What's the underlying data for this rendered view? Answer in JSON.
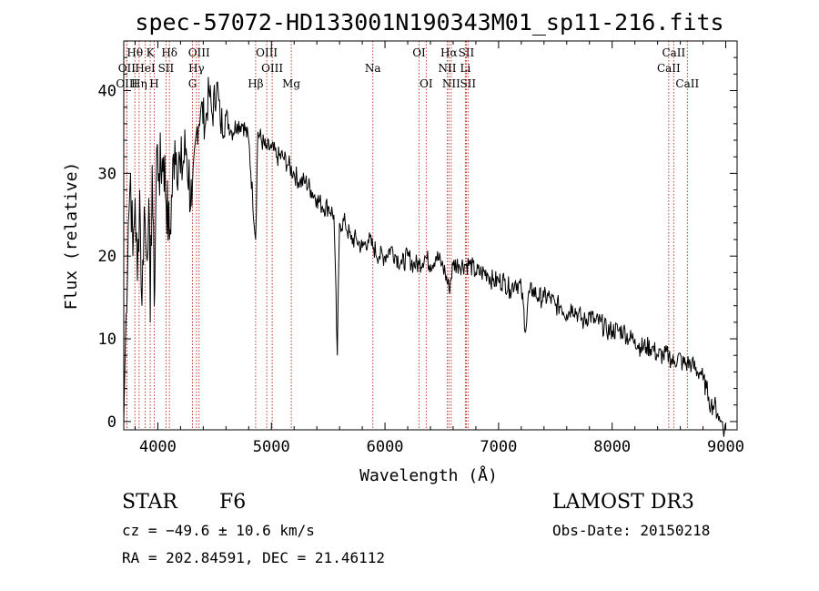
{
  "chart_data": {
    "type": "line",
    "title": "spec-57072-HD133001N190343M01_sp11-216.fits",
    "xlabel": "Wavelength (Å)",
    "ylabel": "Flux (relative)",
    "xlim": [
      3700,
      9100
    ],
    "ylim": [
      -1,
      46
    ],
    "x_ticks": [
      4000,
      5000,
      6000,
      7000,
      8000,
      9000
    ],
    "y_ticks": [
      0,
      10,
      20,
      30,
      40
    ],
    "grid": false,
    "series": [
      {
        "name": "spectrum",
        "x": [
          3700,
          3720,
          3740,
          3760,
          3780,
          3800,
          3820,
          3840,
          3860,
          3880,
          3900,
          3920,
          3933,
          3950,
          3968,
          3990,
          4010,
          4050,
          4102,
          4150,
          4200,
          4250,
          4300,
          4340,
          4380,
          4420,
          4450,
          4480,
          4520,
          4550,
          4600,
          4650,
          4700,
          4750,
          4800,
          4861,
          4880,
          4950,
          5000,
          5050,
          5100,
          5150,
          5200,
          5250,
          5300,
          5350,
          5400,
          5450,
          5500,
          5550,
          5580,
          5600,
          5650,
          5700,
          5750,
          5800,
          5850,
          5900,
          5950,
          6000,
          6050,
          6100,
          6150,
          6200,
          6250,
          6300,
          6350,
          6400,
          6450,
          6500,
          6530,
          6563,
          6600,
          6650,
          6700,
          6750,
          6800,
          6850,
          6900,
          6950,
          7000,
          7050,
          7100,
          7150,
          7200,
          7240,
          7260,
          7300,
          7350,
          7400,
          7450,
          7500,
          7550,
          7600,
          7650,
          7700,
          7750,
          7800,
          7850,
          7900,
          7950,
          8000,
          8050,
          8100,
          8150,
          8200,
          8250,
          8300,
          8350,
          8400,
          8450,
          8500,
          8542,
          8580,
          8620,
          8662,
          8700,
          8750,
          8780,
          8800,
          8830,
          8850,
          8870,
          8900,
          8930,
          8950,
          8970,
          8990,
          9000
        ],
        "y": [
          0,
          13,
          24,
          30,
          20,
          27,
          17,
          28,
          14,
          26,
          20,
          27,
          12,
          31,
          14,
          33,
          30,
          32,
          22,
          34,
          30,
          33,
          26,
          35,
          38,
          36,
          40,
          37,
          41,
          36,
          37,
          35,
          36,
          36,
          34,
          22,
          35,
          33,
          33,
          32,
          32,
          31,
          30,
          29,
          29,
          28,
          27,
          26,
          26,
          25,
          8,
          24,
          24,
          22,
          22,
          21,
          22,
          21,
          20,
          20,
          21,
          20,
          19,
          20,
          19,
          19,
          20,
          19,
          20,
          19,
          18,
          16,
          19,
          19,
          19,
          19,
          18,
          18,
          18,
          17,
          17,
          17,
          16,
          17,
          16,
          11,
          15,
          16,
          15,
          15,
          15,
          14,
          14,
          13,
          14,
          13,
          12,
          13,
          12,
          12,
          11,
          11,
          11,
          11,
          10,
          10,
          9,
          9,
          9,
          8,
          8,
          8,
          7,
          8,
          7,
          7,
          7,
          6,
          6,
          5,
          4,
          3,
          2,
          2,
          1,
          0,
          0,
          -1,
          -1
        ]
      }
    ],
    "lines": [
      {
        "name": "H-theta",
        "label": "Hθ",
        "wavelength": 3798,
        "row": 1
      },
      {
        "name": "OII-a",
        "label": "OII",
        "wavelength": 3727,
        "row": 2
      },
      {
        "name": "OIII-a",
        "label": "OIII",
        "wavelength": 3727,
        "row": 3
      },
      {
        "name": "HeI",
        "label": "HeI",
        "wavelength": 3889,
        "row": 2
      },
      {
        "name": "H-eta",
        "label": "Hη",
        "wavelength": 3835,
        "row": 3
      },
      {
        "name": "K",
        "label": "K",
        "wavelength": 3933,
        "row": 1
      },
      {
        "name": "H",
        "label": "H",
        "wavelength": 3968,
        "row": 3
      },
      {
        "name": "SII-a",
        "label": "SII",
        "wavelength": 4072,
        "row": 2
      },
      {
        "name": "H-delta",
        "label": "Hδ",
        "wavelength": 4102,
        "row": 1
      },
      {
        "name": "OIII-b",
        "label": "OIII",
        "wavelength": 4363,
        "row": 1
      },
      {
        "name": "H-gamma",
        "label": "Hγ",
        "wavelength": 4340,
        "row": 2
      },
      {
        "name": "G",
        "label": "G",
        "wavelength": 4305,
        "row": 3
      },
      {
        "name": "H-beta",
        "label": "Hβ",
        "wavelength": 4861,
        "row": 3
      },
      {
        "name": "OIII-c",
        "label": "OIII",
        "wavelength": 4959,
        "row": 1
      },
      {
        "name": "OIII-d",
        "label": "OIII",
        "wavelength": 5007,
        "row": 2
      },
      {
        "name": "Mg",
        "label": "Mg",
        "wavelength": 5175,
        "row": 3
      },
      {
        "name": "Na",
        "label": "Na",
        "wavelength": 5893,
        "row": 2
      },
      {
        "name": "OI-a",
        "label": "OI",
        "wavelength": 6300,
        "row": 1
      },
      {
        "name": "OI-b",
        "label": "OI",
        "wavelength": 6363,
        "row": 3
      },
      {
        "name": "H-alpha",
        "label": "Hα",
        "wavelength": 6563,
        "row": 1
      },
      {
        "name": "NII-a",
        "label": "NII",
        "wavelength": 6548,
        "row": 2
      },
      {
        "name": "NII-b",
        "label": "NII",
        "wavelength": 6583,
        "row": 3
      },
      {
        "name": "SII-b",
        "label": "SII",
        "wavelength": 6716,
        "row": 1
      },
      {
        "name": "Li",
        "label": "Li",
        "wavelength": 6708,
        "row": 2
      },
      {
        "name": "SII-c",
        "label": "SII",
        "wavelength": 6731,
        "row": 3
      },
      {
        "name": "CaII-a",
        "label": "CaII",
        "wavelength": 8542,
        "row": 1
      },
      {
        "name": "CaII-b",
        "label": "CaII",
        "wavelength": 8498,
        "row": 2
      },
      {
        "name": "CaII-c",
        "label": "CaII",
        "wavelength": 8662,
        "row": 3
      }
    ]
  },
  "info": {
    "class": "STAR",
    "subclass": "F6",
    "survey": "LAMOST DR3",
    "cz": "cz = −49.6 ± 10.6 km/s",
    "obs_date": "Obs-Date: 20150218",
    "radec": "RA = 202.84591, DEC =  21.46112"
  }
}
